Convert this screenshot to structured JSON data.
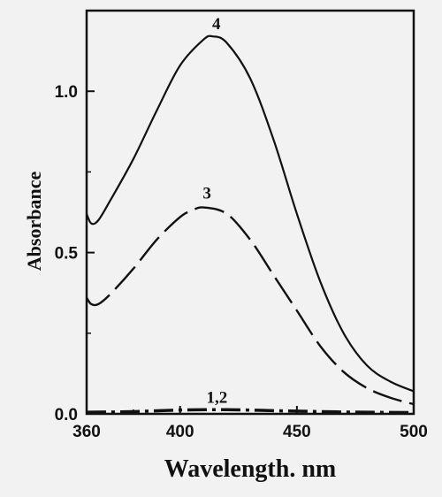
{
  "chart_data": {
    "type": "line",
    "title": "",
    "xlabel": "Wavelength. nm",
    "ylabel": "Absorbance",
    "xlim": [
      360,
      500
    ],
    "ylim": [
      0,
      1.25
    ],
    "x_ticks": [
      360,
      400,
      450,
      500
    ],
    "x_tick_labels": [
      "360",
      "400",
      "450",
      "500"
    ],
    "y_ticks": [
      0.0,
      0.5,
      1.0
    ],
    "y_tick_labels": [
      "0.0",
      "0.5",
      "1.0"
    ],
    "grid": false,
    "legend": "none",
    "series": [
      {
        "name": "4",
        "style": "solid",
        "x": [
          360,
          362,
          365,
          370,
          380,
          390,
          400,
          410,
          414,
          420,
          430,
          440,
          450,
          460,
          470,
          480,
          490,
          500
        ],
        "y": [
          0.62,
          0.59,
          0.6,
          0.66,
          0.79,
          0.94,
          1.08,
          1.16,
          1.17,
          1.15,
          1.04,
          0.85,
          0.62,
          0.41,
          0.25,
          0.15,
          0.1,
          0.07
        ]
      },
      {
        "name": "3",
        "style": "dashed",
        "x": [
          360,
          362,
          365,
          370,
          380,
          390,
          400,
          405,
          410,
          420,
          430,
          440,
          450,
          460,
          470,
          480,
          490,
          500
        ],
        "y": [
          0.36,
          0.34,
          0.34,
          0.37,
          0.45,
          0.54,
          0.61,
          0.63,
          0.64,
          0.62,
          0.54,
          0.43,
          0.32,
          0.21,
          0.13,
          0.08,
          0.05,
          0.03
        ]
      },
      {
        "name": "1,2",
        "style": "dotted",
        "x": [
          360,
          380,
          400,
          420,
          440,
          460,
          480,
          500
        ],
        "y": [
          0.005,
          0.007,
          0.012,
          0.013,
          0.01,
          0.007,
          0.005,
          0.004
        ]
      }
    ],
    "annotations": [
      {
        "text": "4",
        "x": 414,
        "y": 1.17
      },
      {
        "text": "3",
        "x": 410,
        "y": 0.64
      },
      {
        "text": "1,2",
        "x": 412,
        "y": 0.013
      }
    ]
  }
}
